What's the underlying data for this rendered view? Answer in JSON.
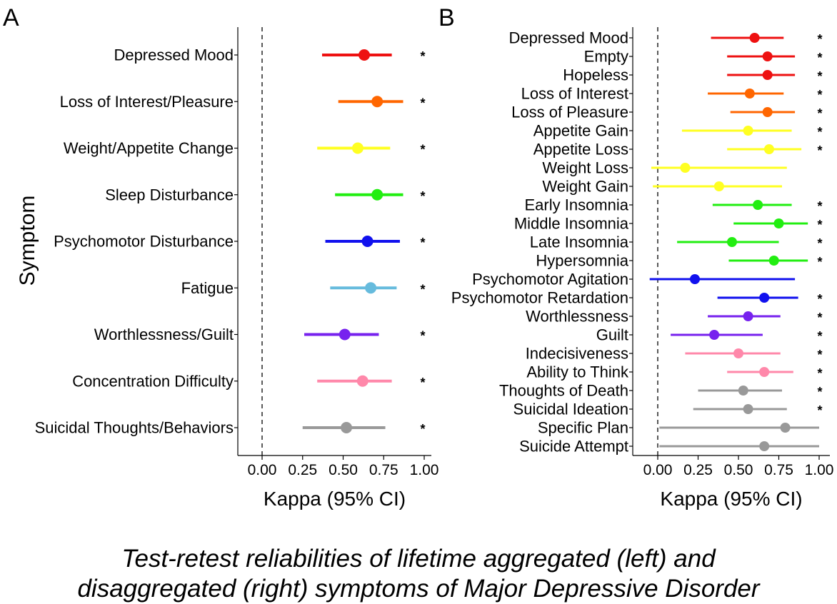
{
  "chart_data": [
    {
      "type": "forest",
      "panel_label": "A",
      "xlabel": "Kappa (95% CI)",
      "ylabel": "Symptom",
      "xlim": [
        -0.15,
        1.05
      ],
      "xticks": [
        "0.00",
        "0.25",
        "0.50",
        "0.75",
        "1.00"
      ],
      "xtick_values": [
        0,
        0.25,
        0.5,
        0.75,
        1.0
      ],
      "reference_line": 0,
      "items": [
        {
          "label": "Depressed Mood",
          "kappa": 0.63,
          "lo": 0.37,
          "hi": 0.8,
          "sig": "*",
          "color": "#ee1111"
        },
        {
          "label": "Loss of Interest/Pleasure",
          "kappa": 0.71,
          "lo": 0.47,
          "hi": 0.87,
          "sig": "*",
          "color": "#ff6600"
        },
        {
          "label": "Weight/Appetite Change",
          "kappa": 0.59,
          "lo": 0.34,
          "hi": 0.79,
          "sig": "*",
          "color": "#ffff22"
        },
        {
          "label": "Sleep Disturbance",
          "kappa": 0.71,
          "lo": 0.45,
          "hi": 0.87,
          "sig": "*",
          "color": "#22ee11"
        },
        {
          "label": "Psychomotor Disturbance",
          "kappa": 0.65,
          "lo": 0.39,
          "hi": 0.85,
          "sig": "*",
          "color": "#1111ee"
        },
        {
          "label": "Fatigue",
          "kappa": 0.67,
          "lo": 0.42,
          "hi": 0.83,
          "sig": "*",
          "color": "#66bbdd"
        },
        {
          "label": "Worthlessness/Guilt",
          "kappa": 0.51,
          "lo": 0.26,
          "hi": 0.72,
          "sig": "*",
          "color": "#7722ee"
        },
        {
          "label": "Concentration Difficulty",
          "kappa": 0.62,
          "lo": 0.34,
          "hi": 0.8,
          "sig": "*",
          "color": "#ff88aa"
        },
        {
          "label": "Suicidal Thoughts/Behaviors",
          "kappa": 0.52,
          "lo": 0.25,
          "hi": 0.76,
          "sig": "*",
          "color": "#999999"
        }
      ]
    },
    {
      "type": "forest",
      "panel_label": "B",
      "xlabel": "Kappa (95% CI)",
      "ylabel": "",
      "xlim": [
        -0.05,
        1.05
      ],
      "xticks": [
        "0.00",
        "0.25",
        "0.50",
        "0.75",
        "1.00"
      ],
      "xtick_values": [
        0,
        0.25,
        0.5,
        0.75,
        1.0
      ],
      "reference_line": 0,
      "items": [
        {
          "label": "Depressed Mood",
          "kappa": 0.6,
          "lo": 0.33,
          "hi": 0.78,
          "sig": "*",
          "color": "#ee1111"
        },
        {
          "label": "Empty",
          "kappa": 0.68,
          "lo": 0.43,
          "hi": 0.85,
          "sig": "*",
          "color": "#ee1111"
        },
        {
          "label": "Hopeless",
          "kappa": 0.68,
          "lo": 0.43,
          "hi": 0.85,
          "sig": "*",
          "color": "#ee1111"
        },
        {
          "label": "Loss of Interest",
          "kappa": 0.57,
          "lo": 0.31,
          "hi": 0.78,
          "sig": "*",
          "color": "#ff6600"
        },
        {
          "label": "Loss of Pleasure",
          "kappa": 0.68,
          "lo": 0.45,
          "hi": 0.85,
          "sig": "*",
          "color": "#ff6600"
        },
        {
          "label": "Appetite Gain",
          "kappa": 0.56,
          "lo": 0.15,
          "hi": 0.83,
          "sig": "*",
          "color": "#ffff22"
        },
        {
          "label": "Appetite Loss",
          "kappa": 0.69,
          "lo": 0.43,
          "hi": 0.89,
          "sig": "*",
          "color": "#ffff22"
        },
        {
          "label": "Weight Loss",
          "kappa": 0.17,
          "lo": -0.04,
          "hi": 0.8,
          "sig": "",
          "color": "#ffff22"
        },
        {
          "label": "Weight Gain",
          "kappa": 0.38,
          "lo": -0.03,
          "hi": 0.77,
          "sig": "",
          "color": "#ffff22"
        },
        {
          "label": "Early Insomnia",
          "kappa": 0.62,
          "lo": 0.34,
          "hi": 0.83,
          "sig": "*",
          "color": "#22ee11"
        },
        {
          "label": "Middle Insomnia",
          "kappa": 0.75,
          "lo": 0.47,
          "hi": 0.93,
          "sig": "*",
          "color": "#22ee11"
        },
        {
          "label": "Late Insomnia",
          "kappa": 0.46,
          "lo": 0.12,
          "hi": 0.75,
          "sig": "*",
          "color": "#22ee11"
        },
        {
          "label": "Hypersomnia",
          "kappa": 0.72,
          "lo": 0.44,
          "hi": 0.93,
          "sig": "*",
          "color": "#22ee11"
        },
        {
          "label": "Psychomotor Agitation",
          "kappa": 0.23,
          "lo": -0.05,
          "hi": 0.85,
          "sig": "",
          "color": "#1111ee"
        },
        {
          "label": "Psychomotor Retardation",
          "kappa": 0.66,
          "lo": 0.37,
          "hi": 0.87,
          "sig": "*",
          "color": "#1111ee"
        },
        {
          "label": "Worthlessness",
          "kappa": 0.56,
          "lo": 0.31,
          "hi": 0.76,
          "sig": "*",
          "color": "#7722ee"
        },
        {
          "label": "Guilt",
          "kappa": 0.35,
          "lo": 0.08,
          "hi": 0.65,
          "sig": "*",
          "color": "#7722ee"
        },
        {
          "label": "Indecisiveness",
          "kappa": 0.5,
          "lo": 0.17,
          "hi": 0.76,
          "sig": "*",
          "color": "#ff88aa"
        },
        {
          "label": "Ability to Think",
          "kappa": 0.66,
          "lo": 0.43,
          "hi": 0.84,
          "sig": "*",
          "color": "#ff88aa"
        },
        {
          "label": "Thoughts of Death",
          "kappa": 0.53,
          "lo": 0.25,
          "hi": 0.77,
          "sig": "*",
          "color": "#999999"
        },
        {
          "label": "Suicidal Ideation",
          "kappa": 0.56,
          "lo": 0.22,
          "hi": 0.8,
          "sig": "*",
          "color": "#999999"
        },
        {
          "label": "Specific Plan",
          "kappa": 0.79,
          "lo": 0.01,
          "hi": 1.0,
          "sig": "",
          "color": "#999999"
        },
        {
          "label": "Suicide Attempt",
          "kappa": 0.66,
          "lo": 0.01,
          "hi": 1.0,
          "sig": "",
          "color": "#999999"
        }
      ]
    }
  ],
  "caption": {
    "line1": "Test-retest reliabilities of lifetime aggregated (left) and",
    "line2": "disaggregated (right) symptoms of Major Depressive Disorder"
  }
}
